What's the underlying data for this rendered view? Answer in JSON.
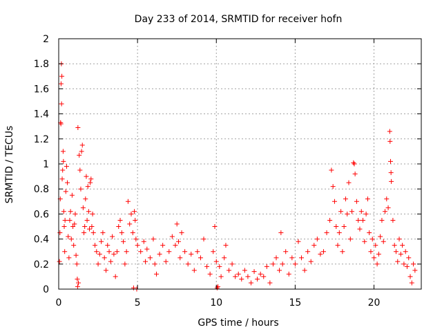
{
  "chart_data": {
    "type": "scatter",
    "title": "Day 233 of 2014, SRMTID for receiver hofn",
    "xlabel": "GPS time / hours",
    "ylabel": "SRMTID / TECUs",
    "xlim": [
      0,
      23
    ],
    "ylim": [
      0,
      2
    ],
    "x_ticks": [
      0,
      5,
      10,
      15,
      20
    ],
    "y_ticks": [
      0,
      0.2,
      0.4,
      0.6,
      0.8,
      1,
      1.2,
      1.4,
      1.6,
      1.8,
      2
    ],
    "x_tick_labels": [
      "0",
      "5",
      "10",
      "15",
      "20"
    ],
    "y_tick_labels": [
      "0",
      "0.2",
      "0.4",
      "0.6",
      "0.8",
      "1",
      "1.2",
      "1.4",
      "1.6",
      "1.8",
      "2"
    ],
    "grid": true,
    "marker": "+",
    "color": "#ff0000",
    "series": [
      {
        "name": "SRMTID",
        "points": [
          [
            0.05,
            0.22
          ],
          [
            0.08,
            0.45
          ],
          [
            0.1,
            0.72
          ],
          [
            0.12,
            1.33
          ],
          [
            0.14,
            1.32
          ],
          [
            0.15,
            1.64
          ],
          [
            0.17,
            1.8
          ],
          [
            0.18,
            1.48
          ],
          [
            0.2,
            1.7
          ],
          [
            0.22,
            0.88
          ],
          [
            0.25,
            0.95
          ],
          [
            0.28,
            1.1
          ],
          [
            0.3,
            1.02
          ],
          [
            0.32,
            0.62
          ],
          [
            0.35,
            0.5
          ],
          [
            0.38,
            0.3
          ],
          [
            0.4,
            0.55
          ],
          [
            0.45,
            0.78
          ],
          [
            0.5,
            0.98
          ],
          [
            0.55,
            0.85
          ],
          [
            0.6,
            0.42
          ],
          [
            0.65,
            0.25
          ],
          [
            0.7,
            0.55
          ],
          [
            0.75,
            0.62
          ],
          [
            0.8,
            0.4
          ],
          [
            0.85,
            0.75
          ],
          [
            0.9,
            0.5
          ],
          [
            0.95,
            0.35
          ],
          [
            1,
            0.52
          ],
          [
            1.05,
            0.6
          ],
          [
            1.1,
            0.27
          ],
          [
            1.15,
            0.2
          ],
          [
            1.18,
            0.08
          ],
          [
            1.2,
            0.02
          ],
          [
            1.22,
            1.29
          ],
          [
            1.25,
            0.05
          ],
          [
            1.3,
            1.07
          ],
          [
            1.35,
            0.95
          ],
          [
            1.4,
            0.8
          ],
          [
            1.45,
            1.1
          ],
          [
            1.5,
            1.15
          ],
          [
            1.55,
            0.65
          ],
          [
            1.6,
            0.45
          ],
          [
            1.65,
            0.5
          ],
          [
            1.7,
            0.72
          ],
          [
            1.75,
            0.9
          ],
          [
            1.8,
            0.55
          ],
          [
            1.85,
            0.82
          ],
          [
            1.9,
            0.62
          ],
          [
            1.95,
            0.48
          ],
          [
            2,
            0.85
          ],
          [
            2.05,
            0.88
          ],
          [
            2.1,
            0.5
          ],
          [
            2.15,
            0.6
          ],
          [
            2.2,
            0.45
          ],
          [
            2.3,
            0.35
          ],
          [
            2.4,
            0.3
          ],
          [
            2.5,
            0.2
          ],
          [
            2.6,
            0.28
          ],
          [
            2.7,
            0.38
          ],
          [
            2.8,
            0.45
          ],
          [
            2.9,
            0.25
          ],
          [
            3,
            0.15
          ],
          [
            3.1,
            0.35
          ],
          [
            3.2,
            0.3
          ],
          [
            3.3,
            0.22
          ],
          [
            3.4,
            0.42
          ],
          [
            3.5,
            0.28
          ],
          [
            3.6,
            0.1
          ],
          [
            3.7,
            0.3
          ],
          [
            3.8,
            0.5
          ],
          [
            3.9,
            0.55
          ],
          [
            4,
            0.45
          ],
          [
            4.1,
            0.38
          ],
          [
            4.2,
            0.2
          ],
          [
            4.3,
            0.3
          ],
          [
            4.4,
            0.7
          ],
          [
            4.5,
            0.52
          ],
          [
            4.6,
            0.6
          ],
          [
            4.7,
            0.45
          ],
          [
            4.75,
            0.01
          ],
          [
            4.8,
            0.62
          ],
          [
            4.85,
            0.55
          ],
          [
            4.9,
            0.4
          ],
          [
            4.95,
            0.0
          ],
          [
            5,
            0.35
          ],
          [
            5.2,
            0.3
          ],
          [
            5.4,
            0.38
          ],
          [
            5.5,
            0.22
          ],
          [
            5.6,
            0.32
          ],
          [
            5.8,
            0.25
          ],
          [
            6,
            0.4
          ],
          [
            6.1,
            0.2
          ],
          [
            6.2,
            0.12
          ],
          [
            6.4,
            0.28
          ],
          [
            6.6,
            0.35
          ],
          [
            6.8,
            0.22
          ],
          [
            7,
            0.3
          ],
          [
            7.2,
            0.42
          ],
          [
            7.4,
            0.35
          ],
          [
            7.5,
            0.52
          ],
          [
            7.6,
            0.38
          ],
          [
            7.7,
            0.25
          ],
          [
            7.8,
            0.45
          ],
          [
            8,
            0.3
          ],
          [
            8.2,
            0.2
          ],
          [
            8.4,
            0.28
          ],
          [
            8.6,
            0.15
          ],
          [
            8.8,
            0.3
          ],
          [
            9,
            0.25
          ],
          [
            9.2,
            0.4
          ],
          [
            9.4,
            0.18
          ],
          [
            9.6,
            0.12
          ],
          [
            9.8,
            0.3
          ],
          [
            9.9,
            0.5
          ],
          [
            10,
            0.22
          ],
          [
            10.05,
            0.01
          ],
          [
            10.1,
            0.02
          ],
          [
            10.2,
            0.18
          ],
          [
            10.3,
            0.1
          ],
          [
            10.5,
            0.25
          ],
          [
            10.6,
            0.35
          ],
          [
            10.8,
            0.15
          ],
          [
            11,
            0.2
          ],
          [
            11.2,
            0.1
          ],
          [
            11.4,
            0.12
          ],
          [
            11.6,
            0.08
          ],
          [
            11.8,
            0.15
          ],
          [
            12,
            0.1
          ],
          [
            12.2,
            0.05
          ],
          [
            12.4,
            0.14
          ],
          [
            12.6,
            0.08
          ],
          [
            12.8,
            0.12
          ],
          [
            13,
            0.1
          ],
          [
            13.2,
            0.18
          ],
          [
            13.4,
            0.05
          ],
          [
            13.6,
            0.2
          ],
          [
            13.8,
            0.25
          ],
          [
            14,
            0.15
          ],
          [
            14.1,
            0.45
          ],
          [
            14.2,
            0.2
          ],
          [
            14.4,
            0.3
          ],
          [
            14.6,
            0.12
          ],
          [
            14.8,
            0.25
          ],
          [
            15,
            0.2
          ],
          [
            15.2,
            0.38
          ],
          [
            15.4,
            0.25
          ],
          [
            15.6,
            0.15
          ],
          [
            15.8,
            0.3
          ],
          [
            16,
            0.22
          ],
          [
            16.2,
            0.35
          ],
          [
            16.4,
            0.4
          ],
          [
            16.6,
            0.28
          ],
          [
            16.8,
            0.3
          ],
          [
            17,
            0.45
          ],
          [
            17.2,
            0.55
          ],
          [
            17.3,
            0.95
          ],
          [
            17.4,
            0.82
          ],
          [
            17.5,
            0.7
          ],
          [
            17.6,
            0.5
          ],
          [
            17.7,
            0.35
          ],
          [
            17.8,
            0.45
          ],
          [
            17.9,
            0.62
          ],
          [
            18,
            0.3
          ],
          [
            18.1,
            0.5
          ],
          [
            18.2,
            0.72
          ],
          [
            18.3,
            0.6
          ],
          [
            18.4,
            0.85
          ],
          [
            18.5,
            0.4
          ],
          [
            18.6,
            0.62
          ],
          [
            18.7,
            1.01
          ],
          [
            18.75,
            1.0
          ],
          [
            18.8,
            0.92
          ],
          [
            18.9,
            0.7
          ],
          [
            19,
            0.55
          ],
          [
            19.1,
            0.48
          ],
          [
            19.2,
            0.62
          ],
          [
            19.3,
            0.55
          ],
          [
            19.4,
            0.38
          ],
          [
            19.5,
            0.6
          ],
          [
            19.6,
            0.72
          ],
          [
            19.7,
            0.45
          ],
          [
            19.8,
            0.3
          ],
          [
            19.9,
            0.4
          ],
          [
            20,
            0.25
          ],
          [
            20.1,
            0.35
          ],
          [
            20.2,
            0.2
          ],
          [
            20.3,
            0.28
          ],
          [
            20.4,
            0.42
          ],
          [
            20.5,
            0.55
          ],
          [
            20.6,
            0.38
          ],
          [
            20.7,
            0.62
          ],
          [
            20.8,
            0.72
          ],
          [
            20.9,
            0.65
          ],
          [
            21,
            1.26
          ],
          [
            21.02,
            1.18
          ],
          [
            21.05,
            1.02
          ],
          [
            21.08,
            0.93
          ],
          [
            21.1,
            0.86
          ],
          [
            21.2,
            0.55
          ],
          [
            21.3,
            0.35
          ],
          [
            21.4,
            0.3
          ],
          [
            21.5,
            0.22
          ],
          [
            21.6,
            0.4
          ],
          [
            21.7,
            0.28
          ],
          [
            21.8,
            0.35
          ],
          [
            21.9,
            0.2
          ],
          [
            22,
            0.3
          ],
          [
            22.1,
            0.18
          ],
          [
            22.2,
            0.25
          ],
          [
            22.3,
            0.1
          ],
          [
            22.4,
            0.05
          ],
          [
            22.5,
            0.2
          ],
          [
            22.6,
            0.15
          ]
        ]
      }
    ]
  }
}
